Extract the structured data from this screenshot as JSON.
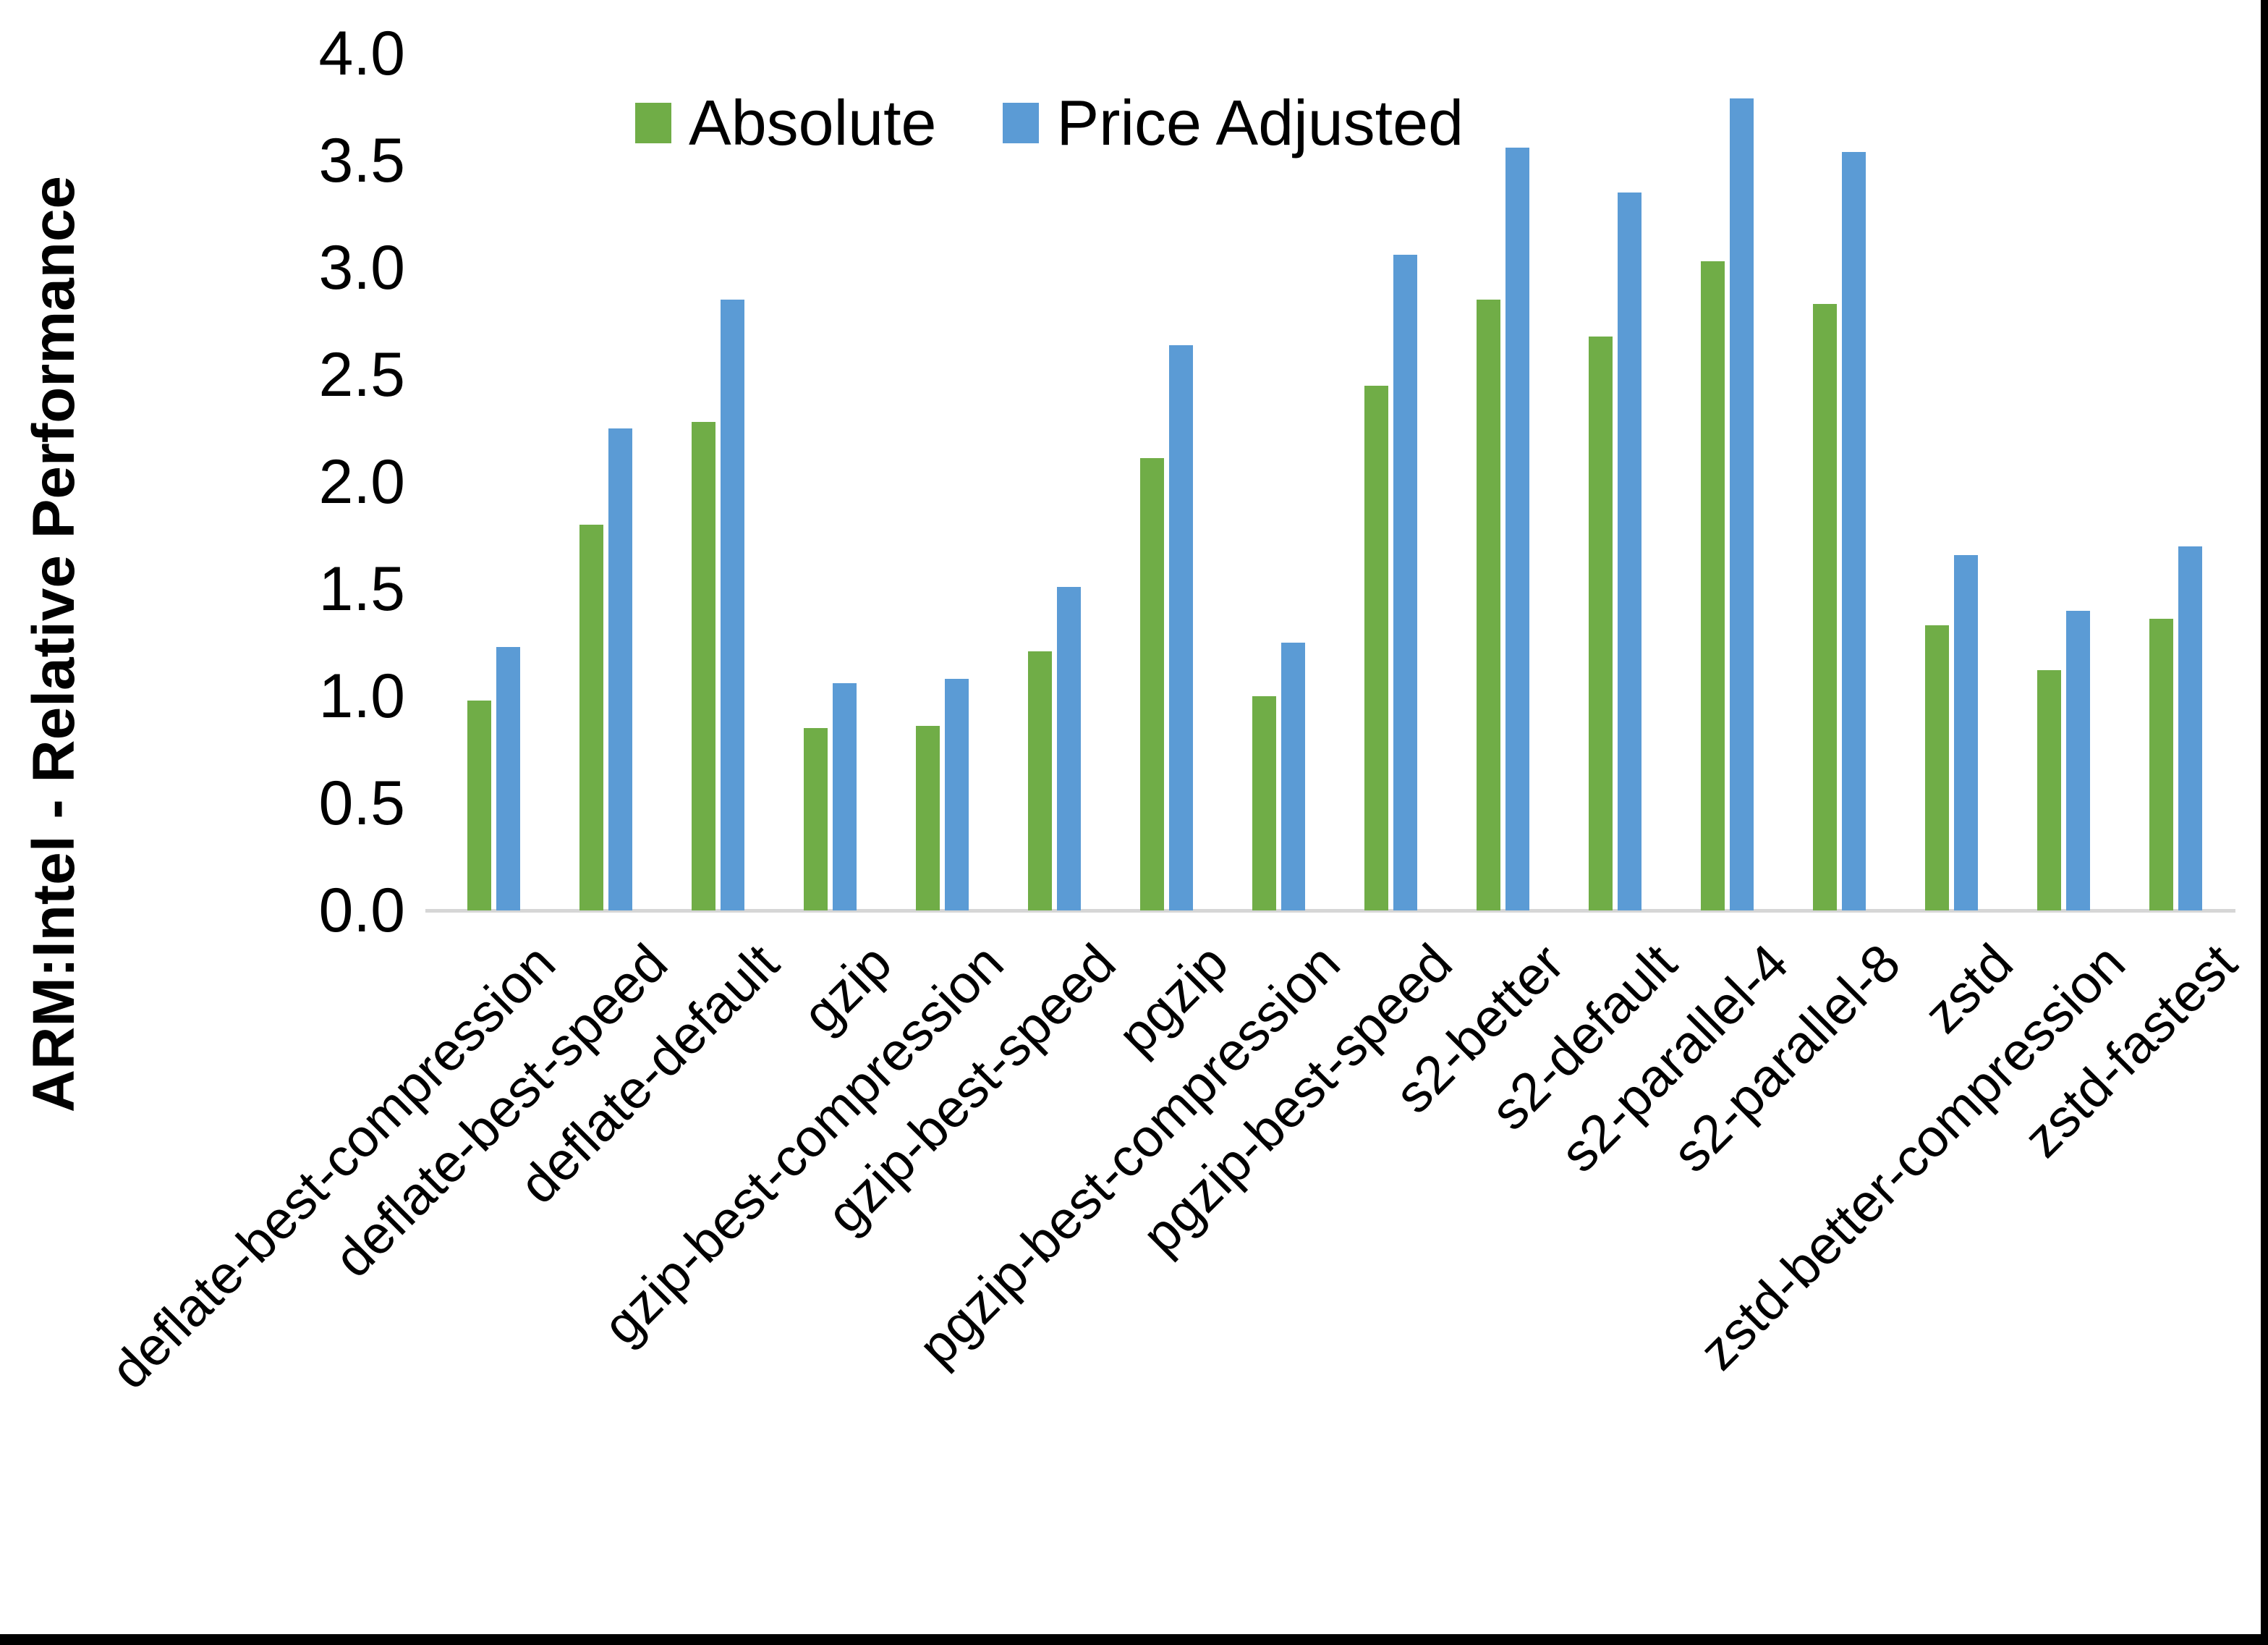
{
  "figure": {
    "background": "#ffffff",
    "border_color": "#000000"
  },
  "legend": {
    "items": [
      {
        "label": "Absolute",
        "color": "#70AD47"
      },
      {
        "label": "Price Adjusted",
        "color": "#5B9BD5"
      }
    ],
    "position": "top-center"
  },
  "chart_data": {
    "type": "bar",
    "title": "",
    "xlabel": "",
    "ylabel": "ARM:Intel - Relative Performance",
    "ylim": [
      0.0,
      4.0
    ],
    "ytick_step": 0.5,
    "ytick_labels": [
      "0.0",
      "0.5",
      "1.0",
      "1.5",
      "2.0",
      "2.5",
      "3.0",
      "3.5",
      "4.0"
    ],
    "grid": false,
    "legend_position": "top",
    "axis_line_color": "#d6d6d6",
    "categories": [
      "deflate-best-compression",
      "deflate-best-speed",
      "deflate-default",
      "gzip",
      "gzip-best-compression",
      "gzip-best-speed",
      "pgzip",
      "pgzip-best-compression",
      "pgzip-best-speed",
      "s2-better",
      "s2-default",
      "s2-parallel-4",
      "s2-parallel-8",
      "zstd",
      "zstd-better-compression",
      "zstd-fastest"
    ],
    "series": [
      {
        "name": "Absolute",
        "color": "#70AD47",
        "values": [
          0.98,
          1.8,
          2.28,
          0.85,
          0.86,
          1.21,
          2.11,
          1.0,
          2.45,
          2.85,
          2.68,
          3.03,
          2.83,
          1.33,
          1.12,
          1.36
        ]
      },
      {
        "name": "Price Adjusted",
        "color": "#5B9BD5",
        "values": [
          1.23,
          2.25,
          2.85,
          1.06,
          1.08,
          1.51,
          2.64,
          1.25,
          3.06,
          3.56,
          3.35,
          3.79,
          3.54,
          1.66,
          1.4,
          1.7
        ]
      }
    ]
  }
}
